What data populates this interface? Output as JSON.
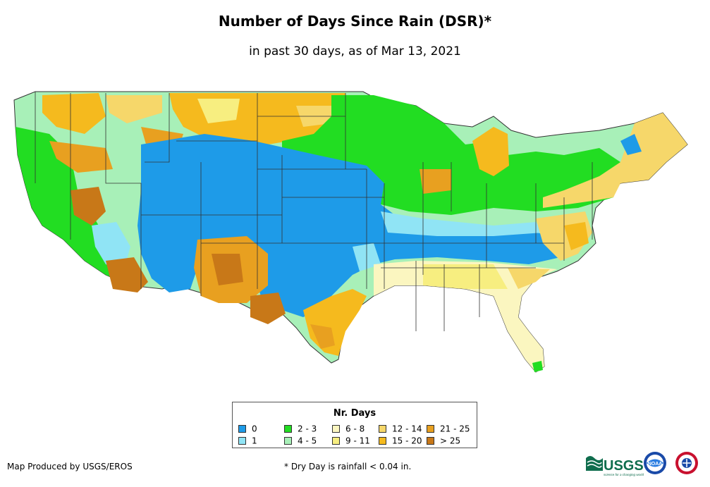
{
  "title": "Number of Days Since Rain (DSR)*",
  "subtitle": "in past 30 days, as of Mar 13, 2021",
  "legend": {
    "title": "Nr. Days",
    "items": [
      {
        "label": "0",
        "color": "#1e9be8"
      },
      {
        "label": "1",
        "color": "#90e4f5"
      },
      {
        "label": "2 - 3",
        "color": "#22dd22"
      },
      {
        "label": "4 - 5",
        "color": "#a8f0b8"
      },
      {
        "label": "6 - 8",
        "color": "#fbf6c0"
      },
      {
        "label": "9 - 11",
        "color": "#f7ee80"
      },
      {
        "label": "12 - 14",
        "color": "#f6d76a"
      },
      {
        "label": "15 - 20",
        "color": "#f5ba1e"
      },
      {
        "label": "21 - 25",
        "color": "#e8a020"
      },
      {
        "label": "> 25",
        "color": "#c87818"
      }
    ]
  },
  "footer": {
    "credit": "Map Produced by USGS/EROS",
    "note": "* Dry Day is rainfall < 0.04 in."
  },
  "logos": {
    "usgs": "USGS",
    "usgs_tagline": "science for a changing world",
    "noaa": "NOAA"
  }
}
